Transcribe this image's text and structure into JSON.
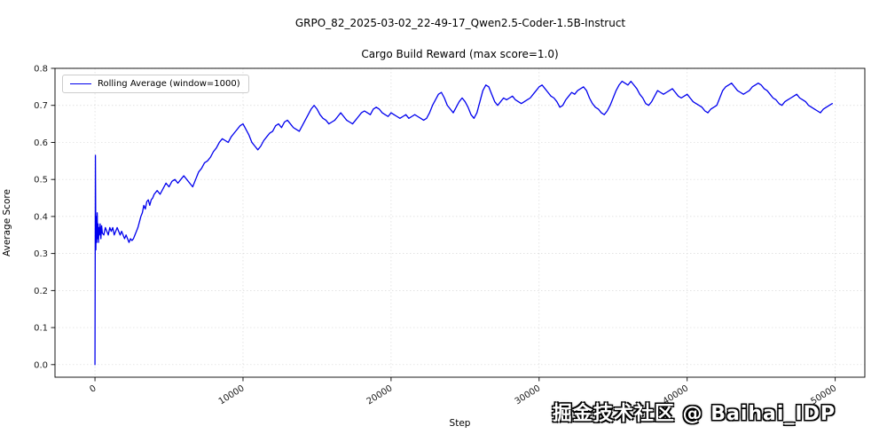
{
  "suptitle": "GRPO_82_2025-03-02_22-49-17_Qwen2.5-Coder-1.5B-Instruct",
  "watermark": "掘金技术社区 @ Baihai_IDP",
  "chart_data": {
    "type": "line",
    "title": "Cargo Build Reward (max score=1.0)",
    "xlabel": "Step",
    "ylabel": "Average Score",
    "grid": true,
    "legend": {
      "position": "upper left",
      "entries": [
        {
          "label": "Rolling Average (window=1000)",
          "color": "#0000ee"
        }
      ]
    },
    "xlim": [
      -2700,
      52000
    ],
    "ylim": [
      -0.034,
      0.8
    ],
    "xticks": [
      0,
      10000,
      20000,
      30000,
      40000,
      50000
    ],
    "yticks": [
      0.0,
      0.1,
      0.2,
      0.3,
      0.4,
      0.5,
      0.6,
      0.7,
      0.8
    ],
    "series": [
      {
        "name": "Rolling Average (window=1000)",
        "color": "#0000ee",
        "points": [
          [
            0,
            0.0
          ],
          [
            30,
            0.565
          ],
          [
            60,
            0.31
          ],
          [
            90,
            0.4
          ],
          [
            120,
            0.33
          ],
          [
            150,
            0.41
          ],
          [
            180,
            0.34
          ],
          [
            210,
            0.38
          ],
          [
            240,
            0.33
          ],
          [
            270,
            0.37
          ],
          [
            300,
            0.35
          ],
          [
            350,
            0.38
          ],
          [
            400,
            0.34
          ],
          [
            450,
            0.375
          ],
          [
            500,
            0.355
          ],
          [
            600,
            0.35
          ],
          [
            700,
            0.37
          ],
          [
            800,
            0.36
          ],
          [
            900,
            0.35
          ],
          [
            1000,
            0.37
          ],
          [
            1100,
            0.36
          ],
          [
            1200,
            0.37
          ],
          [
            1300,
            0.35
          ],
          [
            1400,
            0.36
          ],
          [
            1500,
            0.37
          ],
          [
            1600,
            0.36
          ],
          [
            1700,
            0.35
          ],
          [
            1800,
            0.36
          ],
          [
            1900,
            0.35
          ],
          [
            2000,
            0.34
          ],
          [
            2100,
            0.35
          ],
          [
            2200,
            0.34
          ],
          [
            2300,
            0.33
          ],
          [
            2400,
            0.34
          ],
          [
            2500,
            0.335
          ],
          [
            2600,
            0.34
          ],
          [
            2700,
            0.35
          ],
          [
            2800,
            0.36
          ],
          [
            2900,
            0.37
          ],
          [
            3000,
            0.385
          ],
          [
            3100,
            0.4
          ],
          [
            3200,
            0.41
          ],
          [
            3300,
            0.43
          ],
          [
            3400,
            0.42
          ],
          [
            3500,
            0.44
          ],
          [
            3600,
            0.445
          ],
          [
            3700,
            0.43
          ],
          [
            3800,
            0.445
          ],
          [
            3900,
            0.45
          ],
          [
            4000,
            0.46
          ],
          [
            4200,
            0.47
          ],
          [
            4400,
            0.46
          ],
          [
            4600,
            0.475
          ],
          [
            4800,
            0.49
          ],
          [
            5000,
            0.48
          ],
          [
            5200,
            0.495
          ],
          [
            5400,
            0.5
          ],
          [
            5600,
            0.49
          ],
          [
            5800,
            0.5
          ],
          [
            6000,
            0.51
          ],
          [
            6200,
            0.5
          ],
          [
            6400,
            0.49
          ],
          [
            6600,
            0.48
          ],
          [
            6800,
            0.5
          ],
          [
            7000,
            0.52
          ],
          [
            7200,
            0.53
          ],
          [
            7400,
            0.545
          ],
          [
            7600,
            0.55
          ],
          [
            7800,
            0.56
          ],
          [
            8000,
            0.575
          ],
          [
            8200,
            0.585
          ],
          [
            8400,
            0.6
          ],
          [
            8600,
            0.61
          ],
          [
            8800,
            0.605
          ],
          [
            9000,
            0.6
          ],
          [
            9200,
            0.615
          ],
          [
            9400,
            0.625
          ],
          [
            9600,
            0.635
          ],
          [
            9800,
            0.645
          ],
          [
            10000,
            0.65
          ],
          [
            10200,
            0.635
          ],
          [
            10400,
            0.62
          ],
          [
            10600,
            0.6
          ],
          [
            10800,
            0.59
          ],
          [
            11000,
            0.58
          ],
          [
            11200,
            0.59
          ],
          [
            11400,
            0.605
          ],
          [
            11600,
            0.615
          ],
          [
            11800,
            0.625
          ],
          [
            12000,
            0.63
          ],
          [
            12200,
            0.645
          ],
          [
            12400,
            0.65
          ],
          [
            12600,
            0.64
          ],
          [
            12800,
            0.655
          ],
          [
            13000,
            0.66
          ],
          [
            13200,
            0.65
          ],
          [
            13400,
            0.64
          ],
          [
            13600,
            0.635
          ],
          [
            13800,
            0.63
          ],
          [
            14000,
            0.645
          ],
          [
            14200,
            0.66
          ],
          [
            14400,
            0.675
          ],
          [
            14600,
            0.69
          ],
          [
            14800,
            0.7
          ],
          [
            15000,
            0.69
          ],
          [
            15200,
            0.675
          ],
          [
            15400,
            0.665
          ],
          [
            15600,
            0.66
          ],
          [
            15800,
            0.65
          ],
          [
            16000,
            0.655
          ],
          [
            16200,
            0.66
          ],
          [
            16400,
            0.67
          ],
          [
            16600,
            0.68
          ],
          [
            16800,
            0.67
          ],
          [
            17000,
            0.66
          ],
          [
            17200,
            0.655
          ],
          [
            17400,
            0.65
          ],
          [
            17600,
            0.66
          ],
          [
            17800,
            0.67
          ],
          [
            18000,
            0.68
          ],
          [
            18200,
            0.685
          ],
          [
            18400,
            0.68
          ],
          [
            18600,
            0.675
          ],
          [
            18800,
            0.69
          ],
          [
            19000,
            0.695
          ],
          [
            19200,
            0.69
          ],
          [
            19400,
            0.68
          ],
          [
            19600,
            0.675
          ],
          [
            19800,
            0.67
          ],
          [
            20000,
            0.68
          ],
          [
            20200,
            0.675
          ],
          [
            20400,
            0.67
          ],
          [
            20600,
            0.665
          ],
          [
            20800,
            0.67
          ],
          [
            21000,
            0.675
          ],
          [
            21200,
            0.665
          ],
          [
            21400,
            0.67
          ],
          [
            21600,
            0.675
          ],
          [
            21800,
            0.67
          ],
          [
            22000,
            0.665
          ],
          [
            22200,
            0.66
          ],
          [
            22400,
            0.665
          ],
          [
            22600,
            0.68
          ],
          [
            22800,
            0.7
          ],
          [
            23000,
            0.715
          ],
          [
            23200,
            0.73
          ],
          [
            23400,
            0.735
          ],
          [
            23600,
            0.72
          ],
          [
            23800,
            0.7
          ],
          [
            24000,
            0.69
          ],
          [
            24200,
            0.68
          ],
          [
            24400,
            0.695
          ],
          [
            24600,
            0.71
          ],
          [
            24800,
            0.72
          ],
          [
            25000,
            0.71
          ],
          [
            25200,
            0.695
          ],
          [
            25400,
            0.675
          ],
          [
            25600,
            0.665
          ],
          [
            25800,
            0.68
          ],
          [
            26000,
            0.71
          ],
          [
            26200,
            0.74
          ],
          [
            26400,
            0.755
          ],
          [
            26600,
            0.75
          ],
          [
            26800,
            0.73
          ],
          [
            27000,
            0.71
          ],
          [
            27200,
            0.7
          ],
          [
            27400,
            0.71
          ],
          [
            27600,
            0.72
          ],
          [
            27800,
            0.715
          ],
          [
            28000,
            0.72
          ],
          [
            28200,
            0.725
          ],
          [
            28400,
            0.715
          ],
          [
            28600,
            0.71
          ],
          [
            28800,
            0.705
          ],
          [
            29000,
            0.71
          ],
          [
            29200,
            0.715
          ],
          [
            29400,
            0.72
          ],
          [
            29600,
            0.73
          ],
          [
            29800,
            0.74
          ],
          [
            30000,
            0.75
          ],
          [
            30200,
            0.755
          ],
          [
            30400,
            0.745
          ],
          [
            30600,
            0.735
          ],
          [
            30800,
            0.725
          ],
          [
            31000,
            0.72
          ],
          [
            31200,
            0.71
          ],
          [
            31400,
            0.695
          ],
          [
            31600,
            0.7
          ],
          [
            31800,
            0.715
          ],
          [
            32000,
            0.725
          ],
          [
            32200,
            0.735
          ],
          [
            32400,
            0.73
          ],
          [
            32600,
            0.74
          ],
          [
            32800,
            0.745
          ],
          [
            33000,
            0.75
          ],
          [
            33200,
            0.74
          ],
          [
            33400,
            0.72
          ],
          [
            33600,
            0.705
          ],
          [
            33800,
            0.695
          ],
          [
            34000,
            0.69
          ],
          [
            34200,
            0.68
          ],
          [
            34400,
            0.675
          ],
          [
            34600,
            0.685
          ],
          [
            34800,
            0.7
          ],
          [
            35000,
            0.72
          ],
          [
            35200,
            0.74
          ],
          [
            35400,
            0.755
          ],
          [
            35600,
            0.765
          ],
          [
            35800,
            0.76
          ],
          [
            36000,
            0.755
          ],
          [
            36200,
            0.765
          ],
          [
            36400,
            0.755
          ],
          [
            36600,
            0.745
          ],
          [
            36800,
            0.73
          ],
          [
            37000,
            0.72
          ],
          [
            37200,
            0.705
          ],
          [
            37400,
            0.7
          ],
          [
            37600,
            0.71
          ],
          [
            37800,
            0.725
          ],
          [
            38000,
            0.74
          ],
          [
            38200,
            0.735
          ],
          [
            38400,
            0.73
          ],
          [
            38600,
            0.735
          ],
          [
            38800,
            0.74
          ],
          [
            39000,
            0.745
          ],
          [
            39200,
            0.735
          ],
          [
            39400,
            0.725
          ],
          [
            39600,
            0.72
          ],
          [
            39800,
            0.725
          ],
          [
            40000,
            0.73
          ],
          [
            40200,
            0.72
          ],
          [
            40400,
            0.71
          ],
          [
            40600,
            0.705
          ],
          [
            40800,
            0.7
          ],
          [
            41000,
            0.695
          ],
          [
            41200,
            0.685
          ],
          [
            41400,
            0.68
          ],
          [
            41600,
            0.69
          ],
          [
            41800,
            0.695
          ],
          [
            42000,
            0.7
          ],
          [
            42200,
            0.72
          ],
          [
            42400,
            0.74
          ],
          [
            42600,
            0.75
          ],
          [
            42800,
            0.755
          ],
          [
            43000,
            0.76
          ],
          [
            43200,
            0.75
          ],
          [
            43400,
            0.74
          ],
          [
            43600,
            0.735
          ],
          [
            43800,
            0.73
          ],
          [
            44000,
            0.735
          ],
          [
            44200,
            0.74
          ],
          [
            44400,
            0.75
          ],
          [
            44600,
            0.755
          ],
          [
            44800,
            0.76
          ],
          [
            45000,
            0.755
          ],
          [
            45200,
            0.745
          ],
          [
            45400,
            0.74
          ],
          [
            45600,
            0.73
          ],
          [
            45800,
            0.72
          ],
          [
            46000,
            0.715
          ],
          [
            46200,
            0.705
          ],
          [
            46400,
            0.7
          ],
          [
            46600,
            0.71
          ],
          [
            46800,
            0.715
          ],
          [
            47000,
            0.72
          ],
          [
            47200,
            0.725
          ],
          [
            47400,
            0.73
          ],
          [
            47600,
            0.72
          ],
          [
            47800,
            0.715
          ],
          [
            48000,
            0.71
          ],
          [
            48200,
            0.7
          ],
          [
            48400,
            0.695
          ],
          [
            48600,
            0.69
          ],
          [
            48800,
            0.685
          ],
          [
            49000,
            0.68
          ],
          [
            49200,
            0.69
          ],
          [
            49400,
            0.695
          ],
          [
            49600,
            0.7
          ],
          [
            49800,
            0.705
          ]
        ]
      }
    ]
  }
}
